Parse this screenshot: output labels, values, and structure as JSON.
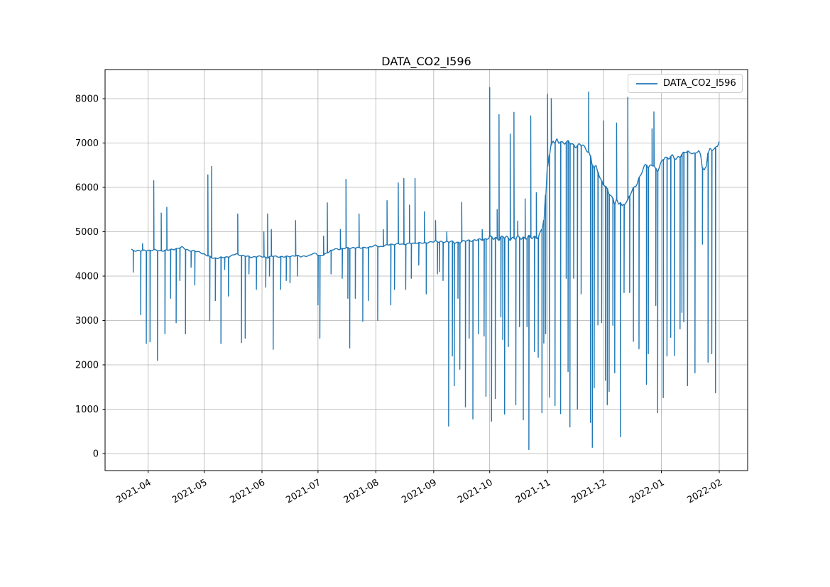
{
  "title": "DATA_CO2_I596",
  "legend": {
    "label": "DATA_CO2_I596",
    "line_color": "#1f77b4"
  },
  "colors": {
    "line": "#1f77b4",
    "grid": "#b0b0b0",
    "spine": "#000000",
    "background": "#ffffff",
    "tick_label": "#000000"
  },
  "chart_data": {
    "type": "line",
    "title": "DATA_CO2_I596",
    "series_name": "DATA_CO2_I596",
    "color": "#1f77b4",
    "xlabel": "",
    "ylabel": "",
    "grid": true,
    "legend_position": "upper right",
    "x_axis_kind": "date",
    "x_start_date": "2021-03-23",
    "x_end_date": "2022-02-01",
    "x_ticks": [
      {
        "label": "2021-04",
        "day": 9
      },
      {
        "label": "2021-05",
        "day": 39
      },
      {
        "label": "2021-06",
        "day": 70
      },
      {
        "label": "2021-07",
        "day": 100
      },
      {
        "label": "2021-08",
        "day": 131
      },
      {
        "label": "2021-09",
        "day": 162
      },
      {
        "label": "2021-10",
        "day": 192
      },
      {
        "label": "2021-11",
        "day": 223
      },
      {
        "label": "2021-12",
        "day": 253
      },
      {
        "label": "2022-01",
        "day": 284
      },
      {
        "label": "2022-02",
        "day": 315
      }
    ],
    "y_ticks": [
      0,
      1000,
      2000,
      3000,
      4000,
      5000,
      6000,
      7000,
      8000
    ],
    "ylim": [
      -384,
      8656
    ],
    "description": "Noisy CO2 time series: baseline ~4600 Apr-May 2021, ~4430 Jun, rising ~4700-4870 Jul-Oct, step up to ~7000 at Nov 1, sagging to ~5550 mid-Dec, recovering to ~6800 Jan, ending ~7060 Feb 1. Many transient vertical spikes (sensor dropouts/surges).",
    "baseline": [
      [
        0,
        4600
      ],
      [
        1,
        4570
      ],
      [
        3,
        4580
      ],
      [
        6,
        4570
      ],
      [
        9,
        4580
      ],
      [
        12,
        4590
      ],
      [
        15,
        4570
      ],
      [
        18,
        4580
      ],
      [
        21,
        4590
      ],
      [
        24,
        4620
      ],
      [
        27,
        4650
      ],
      [
        29,
        4610
      ],
      [
        31,
        4580
      ],
      [
        34,
        4560
      ],
      [
        37,
        4540
      ],
      [
        40,
        4470
      ],
      [
        43,
        4420
      ],
      [
        46,
        4400
      ],
      [
        49,
        4420
      ],
      [
        52,
        4440
      ],
      [
        54,
        4460
      ],
      [
        56,
        4500
      ],
      [
        58,
        4480
      ],
      [
        61,
        4450
      ],
      [
        64,
        4430
      ],
      [
        67,
        4440
      ],
      [
        70,
        4440
      ],
      [
        73,
        4420
      ],
      [
        76,
        4450
      ],
      [
        79,
        4440
      ],
      [
        82,
        4430
      ],
      [
        85,
        4450
      ],
      [
        88,
        4460
      ],
      [
        91,
        4440
      ],
      [
        93,
        4460
      ],
      [
        95,
        4450
      ],
      [
        97,
        4500
      ],
      [
        99,
        4520
      ],
      [
        100,
        4480
      ],
      [
        101,
        4460
      ],
      [
        103,
        4470
      ],
      [
        105,
        4530
      ],
      [
        107,
        4580
      ],
      [
        109,
        4610
      ],
      [
        111,
        4600
      ],
      [
        113,
        4620
      ],
      [
        115,
        4640
      ],
      [
        117,
        4620
      ],
      [
        119,
        4640
      ],
      [
        121,
        4650
      ],
      [
        123,
        4630
      ],
      [
        125,
        4640
      ],
      [
        127,
        4650
      ],
      [
        129,
        4670
      ],
      [
        131,
        4690
      ],
      [
        133,
        4660
      ],
      [
        135,
        4680
      ],
      [
        137,
        4700
      ],
      [
        139,
        4710
      ],
      [
        141,
        4720
      ],
      [
        143,
        4730
      ],
      [
        145,
        4710
      ],
      [
        147,
        4720
      ],
      [
        149,
        4750
      ],
      [
        151,
        4730
      ],
      [
        153,
        4740
      ],
      [
        155,
        4760
      ],
      [
        157,
        4740
      ],
      [
        159,
        4750
      ],
      [
        161,
        4780
      ],
      [
        163,
        4790
      ],
      [
        165,
        4760
      ],
      [
        167,
        4770
      ],
      [
        169,
        4780
      ],
      [
        171,
        4780
      ],
      [
        173,
        4750
      ],
      [
        175,
        4760
      ],
      [
        177,
        4780
      ],
      [
        179,
        4790
      ],
      [
        181,
        4800
      ],
      [
        184,
        4810
      ],
      [
        187,
        4820
      ],
      [
        190,
        4840
      ],
      [
        192,
        4860
      ],
      [
        194,
        4850
      ],
      [
        197,
        4860
      ],
      [
        200,
        4870
      ],
      [
        203,
        4860
      ],
      [
        206,
        4850
      ],
      [
        209,
        4870
      ],
      [
        212,
        4870
      ],
      [
        214,
        4860
      ],
      [
        216,
        4880
      ],
      [
        218,
        4900
      ],
      [
        219,
        4950
      ],
      [
        220,
        5050
      ],
      [
        221,
        5250
      ],
      [
        222,
        5800
      ],
      [
        223,
        6500
      ],
      [
        224,
        6750
      ],
      [
        225,
        6950
      ],
      [
        226,
        7050
      ],
      [
        227,
        6990
      ],
      [
        228,
        7060
      ],
      [
        229,
        7010
      ],
      [
        230,
        7040
      ],
      [
        232,
        7000
      ],
      [
        234,
        7020
      ],
      [
        236,
        6980
      ],
      [
        238,
        6930
      ],
      [
        240,
        6960
      ],
      [
        242,
        6940
      ],
      [
        244,
        6850
      ],
      [
        245,
        6800
      ],
      [
        246,
        6700
      ],
      [
        247,
        6520
      ],
      [
        248,
        6420
      ],
      [
        249,
        6470
      ],
      [
        250,
        6370
      ],
      [
        251,
        6220
      ],
      [
        252,
        6150
      ],
      [
        253,
        6080
      ],
      [
        254,
        6000
      ],
      [
        255,
        5950
      ],
      [
        256,
        5860
      ],
      [
        257,
        5800
      ],
      [
        258,
        5760
      ],
      [
        259,
        5660
      ],
      [
        260,
        5710
      ],
      [
        261,
        5610
      ],
      [
        262,
        5660
      ],
      [
        263,
        5560
      ],
      [
        264,
        5620
      ],
      [
        265,
        5680
      ],
      [
        266,
        5720
      ],
      [
        267,
        5810
      ],
      [
        268,
        5900
      ],
      [
        269,
        5960
      ],
      [
        270,
        6010
      ],
      [
        271,
        6100
      ],
      [
        272,
        6210
      ],
      [
        273,
        6300
      ],
      [
        274,
        6400
      ],
      [
        275,
        6470
      ],
      [
        276,
        6500
      ],
      [
        277,
        6450
      ],
      [
        278,
        6490
      ],
      [
        279,
        6520
      ],
      [
        280,
        6510
      ],
      [
        281,
        6400
      ],
      [
        282,
        6360
      ],
      [
        283,
        6460
      ],
      [
        284,
        6560
      ],
      [
        285,
        6650
      ],
      [
        286,
        6700
      ],
      [
        287,
        6660
      ],
      [
        288,
        6650
      ],
      [
        289,
        6690
      ],
      [
        290,
        6700
      ],
      [
        291,
        6660
      ],
      [
        292,
        6650
      ],
      [
        293,
        6690
      ],
      [
        294,
        6710
      ],
      [
        295,
        6740
      ],
      [
        296,
        6760
      ],
      [
        297,
        6790
      ],
      [
        298,
        6810
      ],
      [
        299,
        6790
      ],
      [
        300,
        6800
      ],
      [
        301,
        6770
      ],
      [
        302,
        6750
      ],
      [
        303,
        6790
      ],
      [
        304,
        6810
      ],
      [
        305,
        6720
      ],
      [
        306,
        6480
      ],
      [
        307,
        6400
      ],
      [
        308,
        6460
      ],
      [
        309,
        6790
      ],
      [
        310,
        6850
      ],
      [
        311,
        6810
      ],
      [
        312,
        6880
      ],
      [
        313,
        6900
      ],
      [
        314,
        6930
      ],
      [
        315,
        7060
      ]
    ],
    "spikes": [
      [
        1,
        4090
      ],
      [
        5,
        3130
      ],
      [
        6,
        4730
      ],
      [
        8,
        2480
      ],
      [
        10,
        2520
      ],
      [
        12,
        6150
      ],
      [
        14,
        2100
      ],
      [
        16,
        5420
      ],
      [
        18,
        2700
      ],
      [
        19,
        5550
      ],
      [
        21,
        3500
      ],
      [
        24,
        2950
      ],
      [
        26,
        3900
      ],
      [
        29,
        2700
      ],
      [
        32,
        4200
      ],
      [
        34,
        3800
      ],
      [
        41,
        6280
      ],
      [
        42,
        3000
      ],
      [
        43,
        6470
      ],
      [
        45,
        3450
      ],
      [
        48,
        2480
      ],
      [
        50,
        4150
      ],
      [
        52,
        3550
      ],
      [
        57,
        5400
      ],
      [
        59,
        2500
      ],
      [
        61,
        2600
      ],
      [
        63,
        4050
      ],
      [
        67,
        3700
      ],
      [
        71,
        5000
      ],
      [
        72,
        3750
      ],
      [
        73,
        5400
      ],
      [
        74,
        4000
      ],
      [
        75,
        5050
      ],
      [
        76,
        2350
      ],
      [
        80,
        3700
      ],
      [
        83,
        3900
      ],
      [
        85,
        3850
      ],
      [
        88,
        5250
      ],
      [
        89,
        4000
      ],
      [
        100,
        3350
      ],
      [
        101,
        2600
      ],
      [
        103,
        4900
      ],
      [
        105,
        5650
      ],
      [
        107,
        4050
      ],
      [
        112,
        5050
      ],
      [
        113,
        3950
      ],
      [
        115,
        6180
      ],
      [
        116,
        3500
      ],
      [
        117,
        2380
      ],
      [
        120,
        3500
      ],
      [
        122,
        5400
      ],
      [
        124,
        2980
      ],
      [
        127,
        3450
      ],
      [
        132,
        3000
      ],
      [
        135,
        5050
      ],
      [
        137,
        5700
      ],
      [
        139,
        3350
      ],
      [
        141,
        3700
      ],
      [
        143,
        6100
      ],
      [
        146,
        6200
      ],
      [
        147,
        3700
      ],
      [
        149,
        5600
      ],
      [
        150,
        3950
      ],
      [
        152,
        6200
      ],
      [
        154,
        4250
      ],
      [
        157,
        5450
      ],
      [
        158,
        3600
      ],
      [
        163,
        5250
      ],
      [
        164,
        4050
      ],
      [
        165,
        4100
      ],
      [
        167,
        3900
      ],
      [
        169,
        5000
      ],
      [
        170,
        620
      ],
      [
        172,
        2200
      ],
      [
        173,
        1530
      ],
      [
        175,
        3500
      ],
      [
        176,
        1900
      ],
      [
        177,
        5660
      ],
      [
        179,
        1050
      ],
      [
        181,
        2600
      ],
      [
        183,
        780
      ],
      [
        186,
        2700
      ],
      [
        188,
        5050
      ],
      [
        189,
        2650
      ],
      [
        190,
        1290
      ],
      [
        192,
        8250
      ],
      [
        193,
        730
      ],
      [
        195,
        1240
      ],
      [
        196,
        5500
      ],
      [
        197,
        7640
      ],
      [
        198,
        3080
      ],
      [
        199,
        2570
      ],
      [
        200,
        890
      ],
      [
        202,
        2410
      ],
      [
        203,
        7200
      ],
      [
        205,
        7690
      ],
      [
        206,
        1100
      ],
      [
        207,
        5240
      ],
      [
        208,
        2860
      ],
      [
        210,
        760
      ],
      [
        211,
        5740
      ],
      [
        212,
        2860
      ],
      [
        213,
        90
      ],
      [
        214,
        7610
      ],
      [
        216,
        2300
      ],
      [
        217,
        5880
      ],
      [
        218,
        2170
      ],
      [
        220,
        920
      ],
      [
        221,
        2490
      ],
      [
        222,
        2700
      ],
      [
        223,
        8100
      ],
      [
        224,
        1270
      ],
      [
        225,
        8000
      ],
      [
        227,
        1080
      ],
      [
        230,
        900
      ],
      [
        233,
        3950
      ],
      [
        234,
        1850
      ],
      [
        235,
        600
      ],
      [
        237,
        3950
      ],
      [
        239,
        1000
      ],
      [
        241,
        3600
      ],
      [
        245,
        8150
      ],
      [
        246,
        700
      ],
      [
        247,
        140
      ],
      [
        248,
        1480
      ],
      [
        250,
        2900
      ],
      [
        252,
        2950
      ],
      [
        253,
        7500
      ],
      [
        254,
        1650
      ],
      [
        255,
        1100
      ],
      [
        256,
        1400
      ],
      [
        258,
        2890
      ],
      [
        259,
        1820
      ],
      [
        260,
        7450
      ],
      [
        262,
        380
      ],
      [
        264,
        3630
      ],
      [
        266,
        8030
      ],
      [
        267,
        3630
      ],
      [
        269,
        2530
      ],
      [
        272,
        2360
      ],
      [
        276,
        1560
      ],
      [
        277,
        2250
      ],
      [
        279,
        7320
      ],
      [
        280,
        7700
      ],
      [
        281,
        3340
      ],
      [
        282,
        920
      ],
      [
        285,
        1260
      ],
      [
        287,
        2200
      ],
      [
        289,
        2620
      ],
      [
        291,
        2210
      ],
      [
        294,
        2810
      ],
      [
        295,
        3180
      ],
      [
        296,
        2970
      ],
      [
        298,
        1530
      ],
      [
        302,
        1820
      ],
      [
        306,
        4720
      ],
      [
        309,
        2060
      ],
      [
        311,
        2250
      ],
      [
        313,
        1370
      ]
    ]
  }
}
